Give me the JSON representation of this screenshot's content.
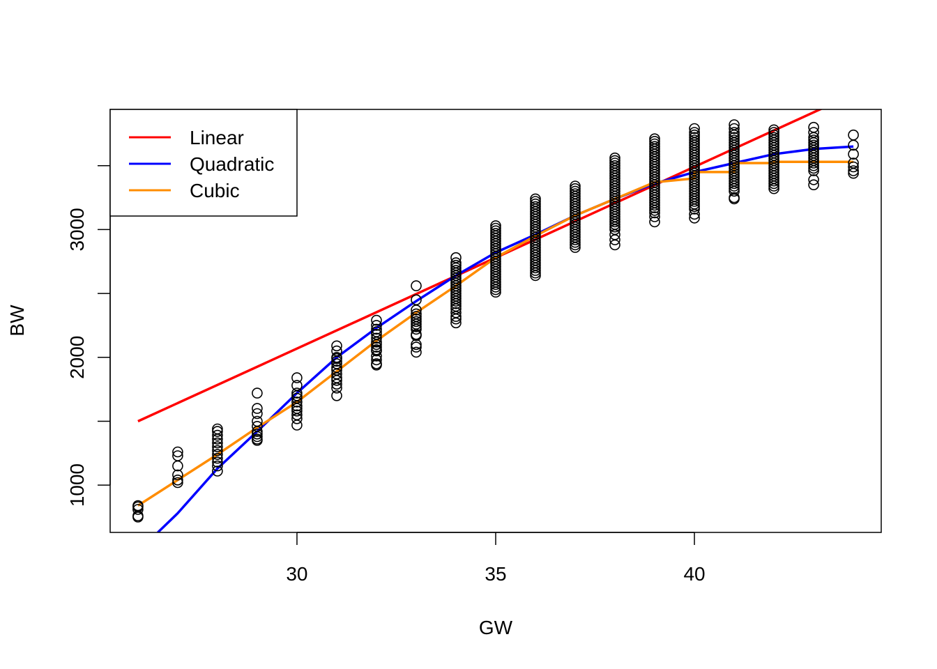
{
  "chart_data": {
    "type": "scatter",
    "title": "",
    "xlabel": "GW",
    "ylabel": "BW",
    "xlim": [
      25.3,
      44.7
    ],
    "ylim": [
      630,
      3940
    ],
    "x_ticks": [
      30,
      35,
      40
    ],
    "x_tick_labels": [
      "30",
      "35",
      "40"
    ],
    "y_ticks": [
      1000,
      1500,
      2000,
      2500,
      3000,
      3500
    ],
    "y_tick_labels": [
      "1000",
      "",
      "2000",
      "",
      "3000",
      ""
    ],
    "grid": false,
    "legend_position": "top-left",
    "points": [
      {
        "x": 26,
        "values": [
          840,
          830,
          760,
          750,
          810
        ]
      },
      {
        "x": 27,
        "values": [
          1260,
          1230,
          1150,
          1080,
          1040,
          1020
        ]
      },
      {
        "x": 28,
        "values": [
          1440,
          1420,
          1390,
          1360,
          1330,
          1300,
          1270,
          1240,
          1210,
          1180,
          1150,
          1110
        ]
      },
      {
        "x": 29,
        "values": [
          1720,
          1600,
          1560,
          1500,
          1460,
          1420,
          1400,
          1380,
          1360,
          1350
        ]
      },
      {
        "x": 30,
        "values": [
          1840,
          1780,
          1720,
          1700,
          1680,
          1650,
          1620,
          1600,
          1580,
          1550,
          1520,
          1470
        ]
      },
      {
        "x": 31,
        "values": [
          2090,
          2050,
          2000,
          1990,
          1970,
          1950,
          1920,
          1900,
          1870,
          1840,
          1820,
          1790,
          1760,
          1700
        ]
      },
      {
        "x": 32,
        "values": [
          2290,
          2250,
          2220,
          2200,
          2180,
          2150,
          2120,
          2100,
          2080,
          2060,
          2050,
          2010,
          1980,
          1950,
          1940
        ]
      },
      {
        "x": 33,
        "values": [
          2560,
          2450,
          2370,
          2340,
          2320,
          2300,
          2280,
          2260,
          2240,
          2220,
          2180,
          2170,
          2100,
          2080,
          2040
        ]
      },
      {
        "x": 34,
        "values": [
          2780,
          2740,
          2720,
          2700,
          2680,
          2660,
          2640,
          2620,
          2600,
          2580,
          2560,
          2540,
          2520,
          2500,
          2480,
          2460,
          2440,
          2420,
          2400,
          2380,
          2350,
          2320,
          2300,
          2270
        ]
      },
      {
        "x": 35,
        "values": [
          3030,
          3010,
          2990,
          2970,
          2950,
          2930,
          2910,
          2890,
          2870,
          2850,
          2830,
          2810,
          2790,
          2770,
          2750,
          2730,
          2710,
          2690,
          2670,
          2650,
          2630,
          2610,
          2590,
          2570,
          2550,
          2530,
          2510
        ]
      },
      {
        "x": 36,
        "values": [
          3240,
          3220,
          3200,
          3180,
          3160,
          3140,
          3120,
          3100,
          3080,
          3060,
          3040,
          3020,
          3000,
          2980,
          2960,
          2940,
          2920,
          2900,
          2880,
          2860,
          2840,
          2820,
          2800,
          2780,
          2760,
          2740,
          2720,
          2700,
          2680,
          2660,
          2640
        ]
      },
      {
        "x": 37,
        "values": [
          3340,
          3320,
          3300,
          3280,
          3260,
          3240,
          3220,
          3200,
          3180,
          3160,
          3140,
          3120,
          3100,
          3080,
          3060,
          3040,
          3020,
          3000,
          2980,
          2960,
          2940,
          2920,
          2900,
          2880,
          2860
        ]
      },
      {
        "x": 38,
        "values": [
          3560,
          3540,
          3520,
          3500,
          3480,
          3460,
          3440,
          3420,
          3400,
          3380,
          3360,
          3340,
          3320,
          3300,
          3280,
          3260,
          3240,
          3220,
          3200,
          3180,
          3160,
          3140,
          3120,
          3100,
          3080,
          3060,
          3040,
          3020,
          3000,
          2960,
          2920,
          2880
        ]
      },
      {
        "x": 39,
        "values": [
          3710,
          3690,
          3670,
          3650,
          3630,
          3610,
          3590,
          3570,
          3550,
          3530,
          3510,
          3490,
          3470,
          3450,
          3430,
          3410,
          3390,
          3370,
          3350,
          3330,
          3310,
          3290,
          3270,
          3250,
          3230,
          3210,
          3190,
          3170,
          3150,
          3130,
          3100,
          3060
        ]
      },
      {
        "x": 40,
        "values": [
          3790,
          3760,
          3740,
          3720,
          3700,
          3680,
          3660,
          3640,
          3620,
          3600,
          3580,
          3560,
          3540,
          3520,
          3500,
          3480,
          3460,
          3440,
          3420,
          3400,
          3380,
          3360,
          3340,
          3320,
          3300,
          3280,
          3260,
          3240,
          3220,
          3200,
          3180,
          3160,
          3120,
          3090
        ]
      },
      {
        "x": 41,
        "values": [
          3820,
          3790,
          3760,
          3740,
          3720,
          3700,
          3680,
          3660,
          3640,
          3620,
          3600,
          3580,
          3560,
          3540,
          3520,
          3500,
          3480,
          3460,
          3440,
          3420,
          3400,
          3380,
          3360,
          3340,
          3320,
          3300,
          3250,
          3240
        ]
      },
      {
        "x": 42,
        "values": [
          3780,
          3760,
          3740,
          3720,
          3700,
          3680,
          3660,
          3640,
          3620,
          3600,
          3580,
          3560,
          3540,
          3520,
          3500,
          3480,
          3460,
          3440,
          3420,
          3400,
          3380,
          3360,
          3340,
          3320
        ]
      },
      {
        "x": 43,
        "values": [
          3800,
          3760,
          3720,
          3700,
          3680,
          3660,
          3640,
          3620,
          3600,
          3580,
          3560,
          3540,
          3520,
          3500,
          3480,
          3460,
          3390,
          3350
        ]
      },
      {
        "x": 44,
        "values": [
          3740,
          3660,
          3590,
          3520,
          3490,
          3460,
          3440
        ]
      }
    ],
    "series": [
      {
        "name": "Linear",
        "color": "#ff0000",
        "kind": "curve",
        "x": [
          26,
          43.3
        ],
        "values": [
          1500,
          3960
        ]
      },
      {
        "name": "Quadratic",
        "color": "#0000ff",
        "kind": "curve",
        "x": [
          26.5,
          27,
          28,
          29,
          30,
          31,
          32,
          33,
          34,
          35,
          36,
          37,
          38,
          39,
          40,
          41,
          42,
          43,
          44
        ],
        "values": [
          630,
          780,
          1130,
          1420,
          1720,
          2000,
          2230,
          2440,
          2640,
          2820,
          2960,
          3110,
          3240,
          3360,
          3450,
          3520,
          3590,
          3630,
          3650
        ]
      },
      {
        "name": "Cubic",
        "color": "#ff8c00",
        "kind": "step",
        "x": [
          26,
          27,
          28,
          29,
          30,
          31,
          32,
          33,
          34,
          35,
          36,
          37,
          38,
          39,
          40,
          40,
          41,
          41,
          42,
          42,
          43,
          44
        ],
        "values": [
          840,
          1040,
          1240,
          1450,
          1650,
          1890,
          2130,
          2350,
          2560,
          2780,
          2950,
          3110,
          3240,
          3370,
          3400,
          3450,
          3450,
          3520,
          3520,
          3530,
          3530,
          3530
        ]
      }
    ]
  }
}
